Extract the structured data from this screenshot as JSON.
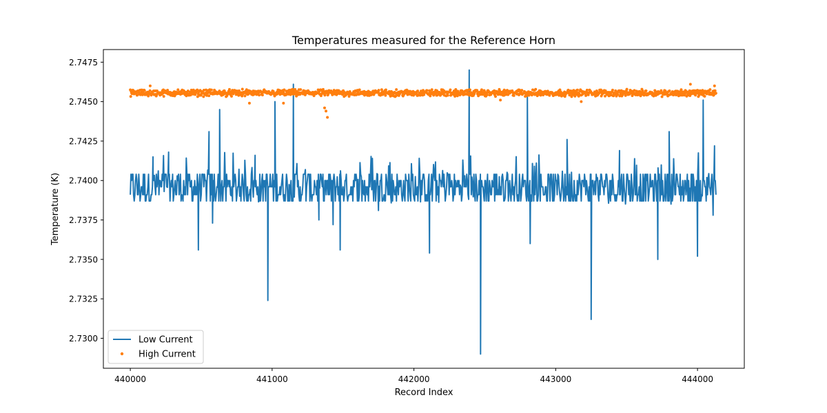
{
  "chart_data": {
    "type": "line",
    "title": "Temperatures measured for the Reference Horn",
    "xlabel": "Record Index",
    "ylabel": "Temperature (K)",
    "xlim": [
      439810,
      444330
    ],
    "ylim": [
      2.7281,
      2.7483
    ],
    "x_ticks": [
      440000,
      441000,
      442000,
      443000,
      444000
    ],
    "x_tick_labels": [
      "440000",
      "441000",
      "442000",
      "443000",
      "444000"
    ],
    "y_ticks": [
      2.73,
      2.7325,
      2.735,
      2.7375,
      2.74,
      2.7425,
      2.745,
      2.7475
    ],
    "y_tick_labels": [
      "2.7300",
      "2.7325",
      "2.7350",
      "2.7375",
      "2.7400",
      "2.7425",
      "2.7450",
      "2.7475"
    ],
    "legend": {
      "location": "lower-left",
      "entries": [
        "Low Current",
        "High Current"
      ]
    },
    "series": [
      {
        "name": "Low Current",
        "style": "line",
        "color": "#1f77b4",
        "x_range": [
          440000,
          444130
        ],
        "baseline_values": [
          2.7387,
          2.7391,
          2.7396,
          2.74,
          2.7404
        ],
        "typical_band": [
          2.7385,
          2.7418
        ],
        "spikes": [
          {
            "x": 440160,
            "y": 2.7415
          },
          {
            "x": 440270,
            "y": 2.7418
          },
          {
            "x": 440480,
            "y": 2.7356
          },
          {
            "x": 440555,
            "y": 2.7431
          },
          {
            "x": 440580,
            "y": 2.7373
          },
          {
            "x": 440630,
            "y": 2.7445
          },
          {
            "x": 440880,
            "y": 2.7416
          },
          {
            "x": 440970,
            "y": 2.7324
          },
          {
            "x": 441020,
            "y": 2.745
          },
          {
            "x": 441150,
            "y": 2.7461
          },
          {
            "x": 441330,
            "y": 2.7375
          },
          {
            "x": 441430,
            "y": 2.7372
          },
          {
            "x": 441480,
            "y": 2.7356
          },
          {
            "x": 441750,
            "y": 2.7381
          },
          {
            "x": 442110,
            "y": 2.7354
          },
          {
            "x": 442390,
            "y": 2.747
          },
          {
            "x": 442470,
            "y": 2.729
          },
          {
            "x": 442800,
            "y": 2.7455
          },
          {
            "x": 442820,
            "y": 2.736
          },
          {
            "x": 443080,
            "y": 2.7426
          },
          {
            "x": 443250,
            "y": 2.7312
          },
          {
            "x": 443450,
            "y": 2.7419
          },
          {
            "x": 443720,
            "y": 2.735
          },
          {
            "x": 443800,
            "y": 2.7431
          },
          {
            "x": 444000,
            "y": 2.7352
          },
          {
            "x": 444040,
            "y": 2.7451
          },
          {
            "x": 444110,
            "y": 2.7378
          },
          {
            "x": 444120,
            "y": 2.7422
          }
        ]
      },
      {
        "name": "High Current",
        "style": "scatter",
        "color": "#ff7f0e",
        "x_range": [
          440000,
          444130
        ],
        "baseline": 2.7456,
        "typical_band": [
          2.7453,
          2.7458
        ],
        "outliers": [
          {
            "x": 440140,
            "y": 2.746
          },
          {
            "x": 440840,
            "y": 2.7449
          },
          {
            "x": 441080,
            "y": 2.7449
          },
          {
            "x": 441370,
            "y": 2.7446
          },
          {
            "x": 441380,
            "y": 2.7444
          },
          {
            "x": 441390,
            "y": 2.744
          },
          {
            "x": 442610,
            "y": 2.7451
          },
          {
            "x": 443180,
            "y": 2.745
          },
          {
            "x": 443950,
            "y": 2.7461
          },
          {
            "x": 444120,
            "y": 2.746
          }
        ]
      }
    ]
  }
}
